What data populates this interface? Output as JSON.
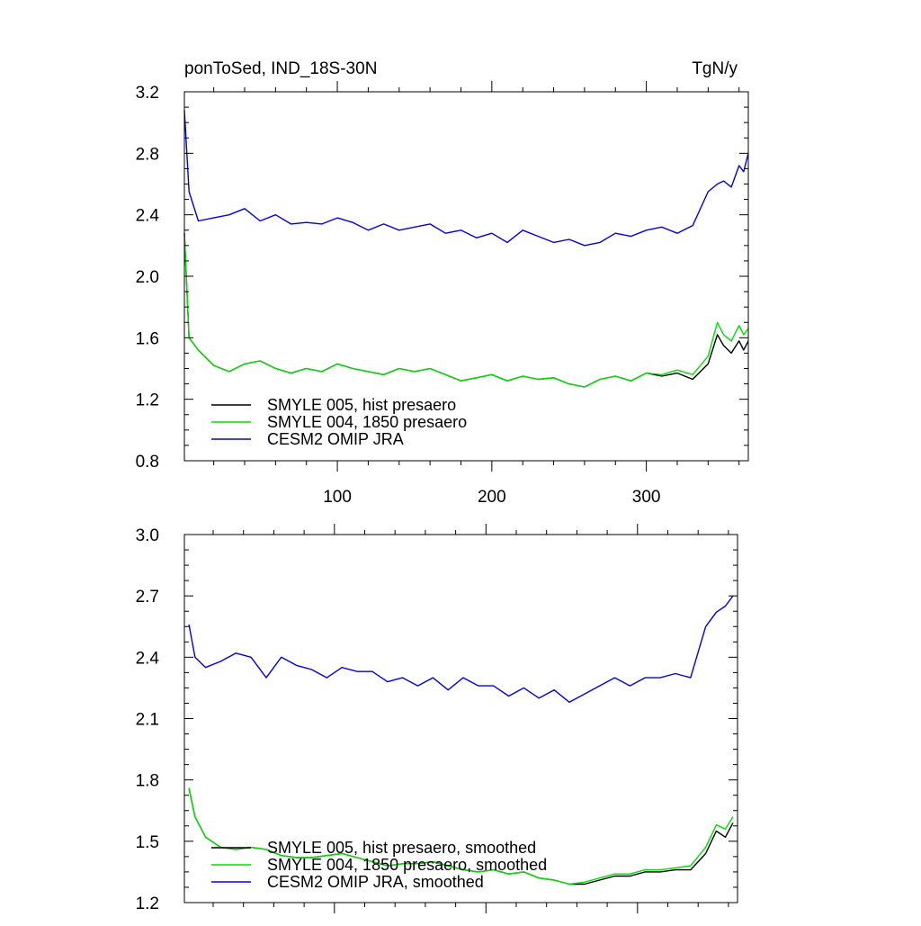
{
  "page": {
    "title_left": "ponToSed, IND_18S-30N",
    "title_right": "TgN/y"
  },
  "chart_data": [
    {
      "type": "line",
      "title": "ponToSed, IND_18S-30N",
      "units": "TgN/y",
      "xlim": [
        1,
        366
      ],
      "ylim": [
        0.8,
        3.2
      ],
      "x_ticks": [
        100,
        200,
        300
      ],
      "y_ticks": [
        0.8,
        1.2,
        1.6,
        2.0,
        2.4,
        2.8,
        3.2
      ],
      "y_tick_labels": [
        "0.8",
        "1.2",
        "1.6",
        "2.0",
        "2.4",
        "2.8",
        "3.2"
      ],
      "legend_position": "bottom-left",
      "series": [
        {
          "name": "SMYLE 005, hist presaero",
          "color": "#000000",
          "x": [
            1,
            4,
            10,
            20,
            30,
            40,
            50,
            60,
            70,
            80,
            90,
            100,
            110,
            120,
            130,
            140,
            150,
            160,
            170,
            180,
            190,
            200,
            210,
            220,
            230,
            240,
            250,
            260,
            270,
            280,
            290,
            300,
            310,
            320,
            330,
            340,
            346,
            350,
            355,
            360,
            363,
            366
          ],
          "y": [
            2.28,
            1.6,
            1.52,
            1.42,
            1.38,
            1.43,
            1.45,
            1.4,
            1.37,
            1.4,
            1.38,
            1.43,
            1.4,
            1.38,
            1.36,
            1.4,
            1.38,
            1.4,
            1.36,
            1.32,
            1.34,
            1.36,
            1.32,
            1.35,
            1.33,
            1.34,
            1.3,
            1.28,
            1.33,
            1.35,
            1.32,
            1.37,
            1.35,
            1.37,
            1.33,
            1.43,
            1.62,
            1.55,
            1.5,
            1.58,
            1.52,
            1.58
          ]
        },
        {
          "name": "SMYLE 004, 1850 presaero",
          "color": "#00e000",
          "x": [
            1,
            4,
            10,
            20,
            30,
            40,
            50,
            60,
            70,
            80,
            90,
            100,
            110,
            120,
            130,
            140,
            150,
            160,
            170,
            180,
            190,
            200,
            210,
            220,
            230,
            240,
            250,
            260,
            270,
            280,
            290,
            300,
            310,
            320,
            330,
            340,
            346,
            350,
            355,
            360,
            363,
            366
          ],
          "y": [
            2.28,
            1.6,
            1.52,
            1.42,
            1.38,
            1.43,
            1.45,
            1.4,
            1.37,
            1.4,
            1.38,
            1.43,
            1.4,
            1.38,
            1.36,
            1.4,
            1.38,
            1.4,
            1.36,
            1.32,
            1.34,
            1.36,
            1.32,
            1.35,
            1.33,
            1.34,
            1.3,
            1.28,
            1.33,
            1.35,
            1.32,
            1.37,
            1.36,
            1.39,
            1.36,
            1.48,
            1.7,
            1.62,
            1.58,
            1.68,
            1.62,
            1.66
          ]
        },
        {
          "name": "CESM2 OMIP JRA",
          "color": "#0000e8",
          "x": [
            1,
            4,
            10,
            20,
            30,
            40,
            50,
            60,
            70,
            80,
            90,
            100,
            110,
            120,
            130,
            140,
            150,
            160,
            170,
            180,
            190,
            200,
            210,
            220,
            230,
            240,
            250,
            260,
            270,
            280,
            290,
            300,
            310,
            320,
            330,
            340,
            346,
            350,
            355,
            360,
            363,
            366
          ],
          "y": [
            3.08,
            2.55,
            2.36,
            2.38,
            2.4,
            2.44,
            2.36,
            2.4,
            2.34,
            2.35,
            2.34,
            2.38,
            2.35,
            2.3,
            2.34,
            2.3,
            2.32,
            2.34,
            2.28,
            2.3,
            2.25,
            2.28,
            2.22,
            2.3,
            2.26,
            2.22,
            2.24,
            2.2,
            2.22,
            2.28,
            2.26,
            2.3,
            2.32,
            2.28,
            2.33,
            2.55,
            2.6,
            2.62,
            2.58,
            2.72,
            2.68,
            2.8
          ]
        }
      ]
    },
    {
      "type": "line",
      "xlim": [
        1,
        366
      ],
      "ylim": [
        1.2,
        3.0
      ],
      "x_ticks": [
        100,
        200,
        300
      ],
      "y_ticks": [
        1.2,
        1.5,
        1.8,
        2.1,
        2.4,
        2.7,
        3.0
      ],
      "y_tick_labels": [
        "1.2",
        "1.5",
        "1.8",
        "2.1",
        "2.4",
        "2.7",
        "3.0"
      ],
      "legend_position": "bottom-center",
      "series": [
        {
          "name": "SMYLE 005, hist presaero, smoothed",
          "color": "#000000",
          "x": [
            4,
            8,
            15,
            25,
            35,
            45,
            55,
            65,
            75,
            85,
            95,
            105,
            115,
            125,
            135,
            145,
            155,
            165,
            175,
            185,
            195,
            205,
            215,
            225,
            235,
            245,
            255,
            265,
            275,
            285,
            295,
            305,
            315,
            325,
            335,
            345,
            352,
            358,
            363
          ],
          "y": [
            1.76,
            1.62,
            1.52,
            1.47,
            1.46,
            1.47,
            1.46,
            1.43,
            1.42,
            1.42,
            1.43,
            1.44,
            1.42,
            1.4,
            1.38,
            1.39,
            1.39,
            1.4,
            1.38,
            1.36,
            1.35,
            1.36,
            1.34,
            1.35,
            1.32,
            1.31,
            1.29,
            1.29,
            1.31,
            1.33,
            1.33,
            1.35,
            1.35,
            1.36,
            1.36,
            1.44,
            1.55,
            1.52,
            1.59
          ]
        },
        {
          "name": "SMYLE 004, 1850 presaero, smoothed",
          "color": "#00e000",
          "x": [
            4,
            8,
            15,
            25,
            35,
            45,
            55,
            65,
            75,
            85,
            95,
            105,
            115,
            125,
            135,
            145,
            155,
            165,
            175,
            185,
            195,
            205,
            215,
            225,
            235,
            245,
            255,
            265,
            275,
            285,
            295,
            305,
            315,
            325,
            335,
            345,
            352,
            358,
            363
          ],
          "y": [
            1.76,
            1.62,
            1.52,
            1.47,
            1.46,
            1.47,
            1.46,
            1.43,
            1.42,
            1.42,
            1.43,
            1.44,
            1.42,
            1.4,
            1.38,
            1.39,
            1.39,
            1.4,
            1.38,
            1.36,
            1.35,
            1.36,
            1.34,
            1.35,
            1.32,
            1.31,
            1.29,
            1.3,
            1.32,
            1.34,
            1.34,
            1.36,
            1.36,
            1.37,
            1.38,
            1.47,
            1.58,
            1.56,
            1.62
          ]
        },
        {
          "name": "CESM2 OMIP JRA, smoothed",
          "color": "#0000e8",
          "x": [
            4,
            8,
            15,
            25,
            35,
            45,
            55,
            65,
            75,
            85,
            95,
            105,
            115,
            125,
            135,
            145,
            155,
            165,
            175,
            185,
            195,
            205,
            215,
            225,
            235,
            245,
            255,
            265,
            275,
            285,
            295,
            305,
            315,
            325,
            335,
            345,
            352,
            358,
            363
          ],
          "y": [
            2.56,
            2.4,
            2.35,
            2.38,
            2.42,
            2.4,
            2.3,
            2.4,
            2.36,
            2.34,
            2.3,
            2.35,
            2.33,
            2.33,
            2.28,
            2.3,
            2.26,
            2.3,
            2.24,
            2.3,
            2.26,
            2.26,
            2.21,
            2.25,
            2.2,
            2.24,
            2.18,
            2.22,
            2.26,
            2.3,
            2.26,
            2.3,
            2.3,
            2.32,
            2.3,
            2.55,
            2.62,
            2.65,
            2.7
          ]
        }
      ]
    }
  ]
}
